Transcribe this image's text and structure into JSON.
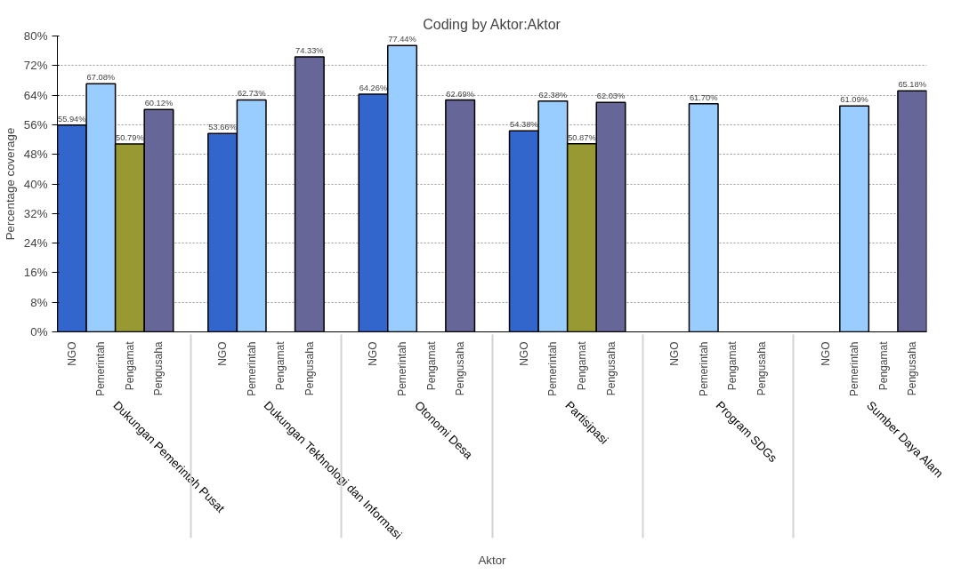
{
  "chart_data": {
    "type": "bar",
    "title": "Coding by Aktor:Aktor",
    "xlabel": "Aktor",
    "ylabel": "Percentage coverage",
    "categories": [
      "Dukungan Pemerintah Pusat",
      "Dukungan Tekhnologi dan Informasi",
      "Otonomi Desa",
      "Partisipasi",
      "Program SDGs",
      "Sumber Daya Alam"
    ],
    "series": [
      {
        "name": "NGO",
        "color": "#3366cc",
        "values": [
          55.94,
          53.66,
          64.26,
          54.38,
          null,
          null
        ],
        "value_labels": [
          "55.94%",
          "53.66%",
          "64.26%",
          "54.38%",
          null,
          null
        ]
      },
      {
        "name": "Pemerintah",
        "color": "#99ccff",
        "values": [
          67.08,
          62.73,
          77.44,
          62.38,
          61.7,
          61.09
        ],
        "value_labels": [
          "67.08%",
          "62.73%",
          "77.44%",
          "62.38%",
          "61.70%",
          "61.09%"
        ]
      },
      {
        "name": "Pengamat",
        "color": "#999933",
        "values": [
          50.79,
          null,
          null,
          50.87,
          null,
          null
        ],
        "value_labels": [
          "50.79%",
          null,
          null,
          "50.87%",
          null,
          null
        ]
      },
      {
        "name": "Pengusaha",
        "color": "#666699",
        "values": [
          60.12,
          74.33,
          62.69,
          62.03,
          null,
          65.18
        ],
        "value_labels": [
          "60.12%",
          "74.33%",
          "62.69%",
          "62.03%",
          null,
          "65.18%"
        ]
      }
    ],
    "ylim": [
      0,
      80
    ],
    "yticks": [
      {
        "value": 0,
        "label": "0%"
      },
      {
        "value": 8,
        "label": "8%"
      },
      {
        "value": 16,
        "label": "16%"
      },
      {
        "value": 24,
        "label": "24%"
      },
      {
        "value": 32,
        "label": "32%"
      },
      {
        "value": 40,
        "label": "40%"
      },
      {
        "value": 48,
        "label": "48%"
      },
      {
        "value": 56,
        "label": "56%"
      },
      {
        "value": 64,
        "label": "64%"
      },
      {
        "value": 72,
        "label": "72%"
      },
      {
        "value": 80,
        "label": "80%"
      }
    ],
    "grid": "y",
    "legend": false
  }
}
